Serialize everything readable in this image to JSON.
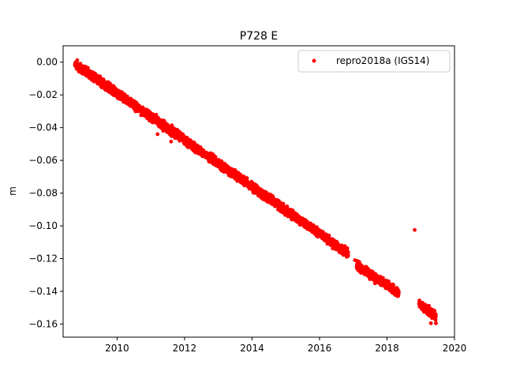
{
  "chart_data": {
    "type": "scatter",
    "title": "P728 E",
    "xlabel": "",
    "ylabel": "m",
    "xlim": [
      2008.4,
      2020.0
    ],
    "ylim": [
      -0.168,
      0.01
    ],
    "xticks": [
      2010,
      2012,
      2014,
      2016,
      2018,
      2020
    ],
    "xtick_labels": [
      "2010",
      "2012",
      "2014",
      "2016",
      "2018",
      "2020"
    ],
    "yticks": [
      0.0,
      -0.02,
      -0.04,
      -0.06,
      -0.08,
      -0.1,
      -0.12,
      -0.14,
      -0.16
    ],
    "ytick_labels": [
      "0.00",
      "−0.02",
      "−0.04",
      "−0.06",
      "−0.08",
      "−0.10",
      "−0.12",
      "−0.14",
      "−0.16"
    ],
    "grid": false,
    "legend_position": "top-right",
    "series": [
      {
        "name": "repro2018a (IGS14)",
        "color": "#ff0000",
        "marker": "circle",
        "segments": [
          {
            "x_start": 2008.75,
            "x_end": 2016.85,
            "y_start": -0.001,
            "y_end": -0.117
          },
          {
            "x_start": 2017.1,
            "x_end": 2018.35,
            "y_start": -0.124,
            "y_end": -0.141
          },
          {
            "x_start": 2018.95,
            "x_end": 2019.45,
            "y_start": -0.148,
            "y_end": -0.155
          }
        ],
        "scatter": 0.0022,
        "outliers": [
          {
            "x": 2018.82,
            "y": -0.1025
          },
          {
            "x": 2011.6,
            "y": -0.0485
          },
          {
            "x": 2011.2,
            "y": -0.044
          },
          {
            "x": 2017.05,
            "y": -0.121
          },
          {
            "x": 2019.3,
            "y": -0.1595
          },
          {
            "x": 2019.45,
            "y": -0.1595
          }
        ]
      }
    ]
  }
}
